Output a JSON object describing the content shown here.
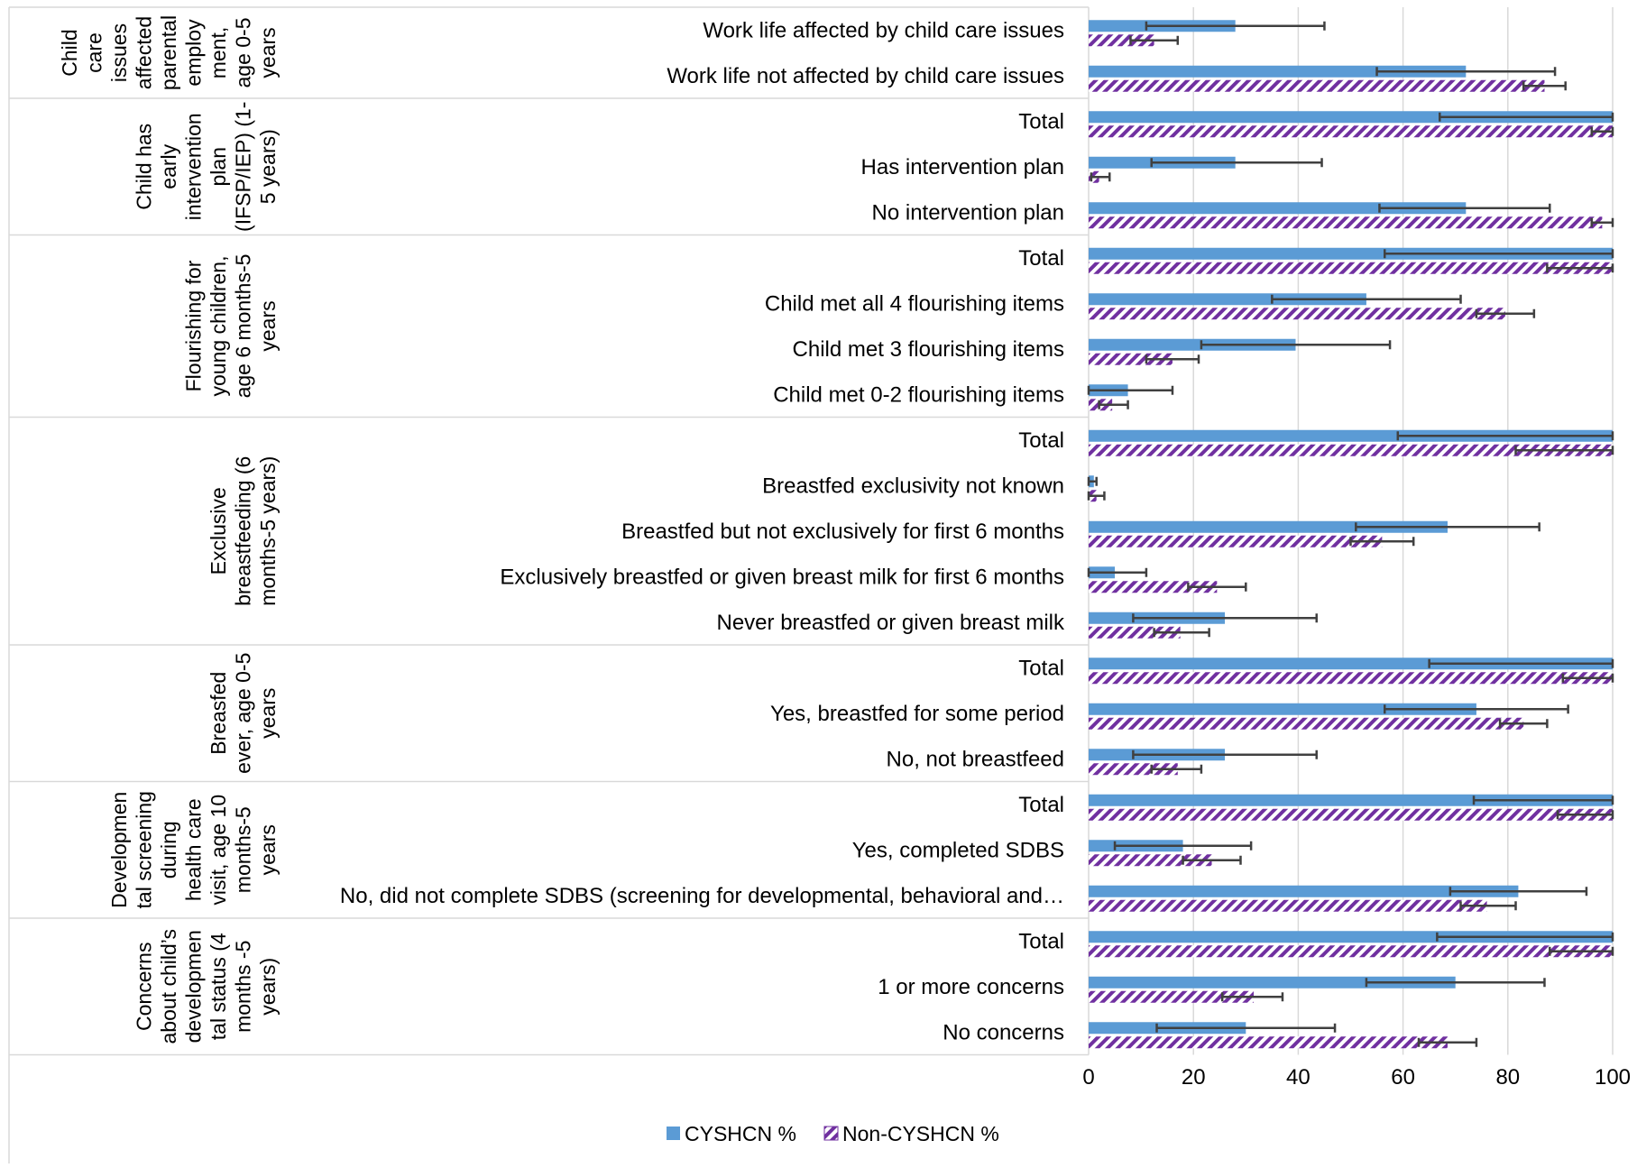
{
  "chart_data": {
    "type": "bar",
    "orientation": "horizontal",
    "xlim": [
      0,
      100
    ],
    "x_ticks": [
      "0",
      "20",
      "40",
      "60",
      "80",
      "100"
    ],
    "grid": "vertical",
    "legend_position": "bottom",
    "colors": {
      "cyshcn": "#5b9bd5",
      "non_cyshcn": "#7030a0",
      "error_bar": "#404040",
      "grid": "#d9d9d9",
      "border": "#d9d9d9"
    },
    "series": [
      {
        "name": "CYSHCN %",
        "key": "cyshcn"
      },
      {
        "name": "Non-CYSHCN %",
        "key": "non_cyshcn"
      }
    ],
    "groups": [
      {
        "label_lines": [
          "Child",
          "care",
          "issues",
          "affected",
          "parental",
          "employ",
          "ment,",
          "age 0-5",
          "years"
        ],
        "categories": [
          {
            "label": "Work life affected by child care issues",
            "cyshcn": 28,
            "cyshcn_err": [
              11,
              45
            ],
            "non_cyshcn": 12.5,
            "non_cyshcn_err": [
              8,
              17
            ]
          },
          {
            "label": "Work life not affected by child care issues",
            "cyshcn": 72,
            "cyshcn_err": [
              55,
              89
            ],
            "non_cyshcn": 87,
            "non_cyshcn_err": [
              83,
              91
            ]
          }
        ]
      },
      {
        "label_lines": [
          "Child has",
          "early",
          "intervention",
          "plan",
          "(IFSP/IEP) (1-",
          "5 years)"
        ],
        "categories": [
          {
            "label": "Total",
            "cyshcn": 100,
            "cyshcn_err": [
              67,
              100
            ],
            "non_cyshcn": 100,
            "non_cyshcn_err": [
              96,
              100
            ]
          },
          {
            "label": "Has intervention plan",
            "cyshcn": 28,
            "cyshcn_err": [
              12,
              44.5
            ],
            "non_cyshcn": 2,
            "non_cyshcn_err": [
              0.5,
              4
            ]
          },
          {
            "label": "No intervention plan",
            "cyshcn": 72,
            "cyshcn_err": [
              55.5,
              88
            ],
            "non_cyshcn": 98,
            "non_cyshcn_err": [
              96,
              100
            ]
          }
        ]
      },
      {
        "label_lines": [
          "Flourishing for",
          "young children,",
          "age 6 months-5",
          "years"
        ],
        "categories": [
          {
            "label": "Total",
            "cyshcn": 100,
            "cyshcn_err": [
              56.5,
              100
            ],
            "non_cyshcn": 100,
            "non_cyshcn_err": [
              87.5,
              100
            ]
          },
          {
            "label": "Child met all 4 flourishing items",
            "cyshcn": 53,
            "cyshcn_err": [
              35,
              71
            ],
            "non_cyshcn": 79.5,
            "non_cyshcn_err": [
              74,
              85
            ]
          },
          {
            "label": "Child met 3 flourishing items",
            "cyshcn": 39.5,
            "cyshcn_err": [
              21.5,
              57.5
            ],
            "non_cyshcn": 16,
            "non_cyshcn_err": [
              11,
              21
            ]
          },
          {
            "label": "Child met 0-2 flourishing items",
            "cyshcn": 7.5,
            "cyshcn_err": [
              0,
              16
            ],
            "non_cyshcn": 4.5,
            "non_cyshcn_err": [
              2,
              7.5
            ]
          }
        ]
      },
      {
        "label_lines": [
          "Exclusive",
          "breastfeeding (6",
          "months-5 years)"
        ],
        "categories": [
          {
            "label": "Total",
            "cyshcn": 100,
            "cyshcn_err": [
              59,
              100
            ],
            "non_cyshcn": 100,
            "non_cyshcn_err": [
              81.5,
              100
            ]
          },
          {
            "label": "Breastfed exclusivity not known",
            "cyshcn": 1,
            "cyshcn_err": [
              0,
              1.5
            ],
            "non_cyshcn": 1.5,
            "non_cyshcn_err": [
              0,
              3
            ]
          },
          {
            "label": "Breastfed but not exclusively for first 6 months",
            "cyshcn": 68.5,
            "cyshcn_err": [
              51,
              86
            ],
            "non_cyshcn": 56,
            "non_cyshcn_err": [
              50,
              62
            ]
          },
          {
            "label": "Exclusively breastfed or given breast milk for first 6 months",
            "cyshcn": 5,
            "cyshcn_err": [
              0,
              11
            ],
            "non_cyshcn": 24.5,
            "non_cyshcn_err": [
              19,
              30
            ]
          },
          {
            "label": "Never breastfed or given breast milk",
            "cyshcn": 26,
            "cyshcn_err": [
              8.5,
              43.5
            ],
            "non_cyshcn": 17.5,
            "non_cyshcn_err": [
              12.5,
              23
            ]
          }
        ]
      },
      {
        "label_lines": [
          "Breasfed",
          "ever, age 0-5",
          "years"
        ],
        "categories": [
          {
            "label": "Total",
            "cyshcn": 100,
            "cyshcn_err": [
              65,
              100
            ],
            "non_cyshcn": 100,
            "non_cyshcn_err": [
              90.5,
              100
            ]
          },
          {
            "label": "Yes, breastfed for some period",
            "cyshcn": 74,
            "cyshcn_err": [
              56.5,
              91.5
            ],
            "non_cyshcn": 83,
            "non_cyshcn_err": [
              78.5,
              87.5
            ]
          },
          {
            "label": "No, not breastfeed",
            "cyshcn": 26,
            "cyshcn_err": [
              8.5,
              43.5
            ],
            "non_cyshcn": 17,
            "non_cyshcn_err": [
              12,
              21.5
            ]
          }
        ]
      },
      {
        "label_lines": [
          "Developmen",
          "tal screening",
          "during",
          "health care",
          "visit, age 10",
          "months-5",
          "years"
        ],
        "categories": [
          {
            "label": "Total",
            "cyshcn": 100,
            "cyshcn_err": [
              73.5,
              100
            ],
            "non_cyshcn": 100,
            "non_cyshcn_err": [
              89.5,
              100
            ]
          },
          {
            "label": "Yes, completed SDBS",
            "cyshcn": 18,
            "cyshcn_err": [
              5,
              31
            ],
            "non_cyshcn": 23.5,
            "non_cyshcn_err": [
              18,
              29
            ]
          },
          {
            "label": "No, did not complete SDBS (screening for developmental, behavioral and…",
            "cyshcn": 82,
            "cyshcn_err": [
              69,
              95
            ],
            "non_cyshcn": 76,
            "non_cyshcn_err": [
              71,
              81.5
            ]
          }
        ]
      },
      {
        "label_lines": [
          "Concerns",
          "about child’s",
          "developmen",
          "tal status (4",
          "months -5",
          "years)"
        ],
        "categories": [
          {
            "label": "Total",
            "cyshcn": 100,
            "cyshcn_err": [
              66.5,
              100
            ],
            "non_cyshcn": 100,
            "non_cyshcn_err": [
              88,
              100
            ]
          },
          {
            "label": "1 or more concerns",
            "cyshcn": 70,
            "cyshcn_err": [
              53,
              87
            ],
            "non_cyshcn": 31.5,
            "non_cyshcn_err": [
              25.5,
              37
            ]
          },
          {
            "label": "No concerns",
            "cyshcn": 30,
            "cyshcn_err": [
              13,
              47
            ],
            "non_cyshcn": 68.5,
            "non_cyshcn_err": [
              63,
              74
            ]
          }
        ]
      }
    ]
  }
}
